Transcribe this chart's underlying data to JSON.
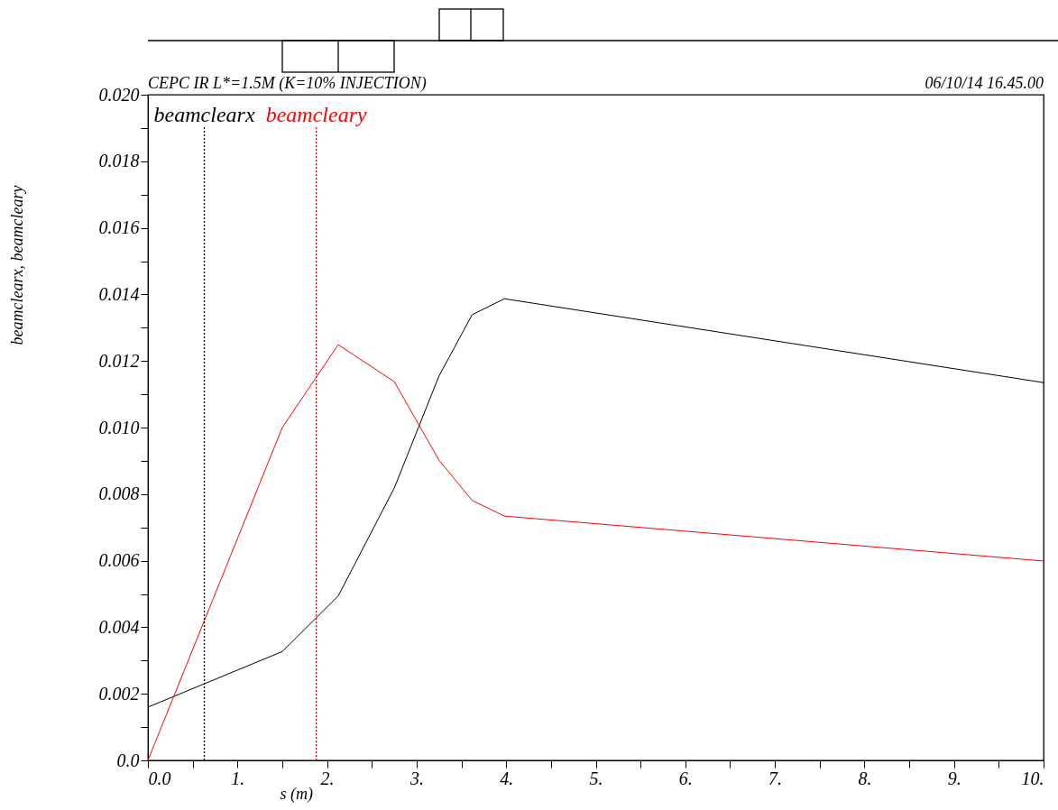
{
  "chart_data": {
    "type": "line",
    "title": "CEPC IR L*=1.5M (K=10% INJECTION)",
    "subtitle": "06/10/14 16.45.00",
    "xlabel": "s (m)",
    "ylabel": "beamclearx, beamcleary",
    "x": [
      0,
      1.5,
      2.125,
      2.75,
      3.25,
      3.62,
      3.98,
      10
    ],
    "series": [
      {
        "name": "beamclearx",
        "color": "#000000",
        "values": [
          0.0016,
          0.00327,
          0.00494,
          0.00818,
          0.01155,
          0.01339,
          0.01387,
          0.01135
        ]
      },
      {
        "name": "beamcleary",
        "color": "#ff0000",
        "values": [
          0,
          0.01,
          0.01249,
          0.01138,
          0.00902,
          0.00781,
          0.00734,
          0.00599
        ]
      }
    ],
    "xlim": [
      0,
      10
    ],
    "ylim": [
      0,
      0.02
    ],
    "xticks": [
      {
        "value": 0,
        "label": "0.0"
      },
      {
        "value": 0.5,
        "label": null
      },
      {
        "value": 1,
        "label": "1."
      },
      {
        "value": 1.5,
        "label": null
      },
      {
        "value": 2,
        "label": "2."
      },
      {
        "value": 2.5,
        "label": null
      },
      {
        "value": 3,
        "label": "3."
      },
      {
        "value": 3.5,
        "label": null
      },
      {
        "value": 4,
        "label": "4."
      },
      {
        "value": 4.5,
        "label": null
      },
      {
        "value": 5,
        "label": "5."
      },
      {
        "value": 5.5,
        "label": null
      },
      {
        "value": 6,
        "label": "6."
      },
      {
        "value": 6.5,
        "label": null
      },
      {
        "value": 7,
        "label": "7."
      },
      {
        "value": 7.5,
        "label": null
      },
      {
        "value": 8,
        "label": "8."
      },
      {
        "value": 8.5,
        "label": null
      },
      {
        "value": 9,
        "label": "9."
      },
      {
        "value": 9.5,
        "label": null
      },
      {
        "value": 10,
        "label": "10."
      }
    ],
    "yticks": [
      {
        "value": 0,
        "label": "0.0"
      },
      {
        "value": 0.001,
        "label": null
      },
      {
        "value": 0.002,
        "label": "0.002"
      },
      {
        "value": 0.003,
        "label": null
      },
      {
        "value": 0.004,
        "label": "0.004"
      },
      {
        "value": 0.005,
        "label": null
      },
      {
        "value": 0.006,
        "label": "0.006"
      },
      {
        "value": 0.007,
        "label": null
      },
      {
        "value": 0.008,
        "label": "0.008"
      },
      {
        "value": 0.009,
        "label": null
      },
      {
        "value": 0.01,
        "label": "0.010"
      },
      {
        "value": 0.011,
        "label": null
      },
      {
        "value": 0.012,
        "label": "0.012"
      },
      {
        "value": 0.013,
        "label": null
      },
      {
        "value": 0.014,
        "label": "0.014"
      },
      {
        "value": 0.015,
        "label": null
      },
      {
        "value": 0.016,
        "label": "0.016"
      },
      {
        "value": 0.017,
        "label": null
      },
      {
        "value": 0.018,
        "label": "0.018"
      },
      {
        "value": 0.019,
        "label": null
      },
      {
        "value": 0.02,
        "label": "0.020"
      }
    ],
    "ref_lines": [
      {
        "axis": "x",
        "value": 0.63,
        "color": "#000000",
        "line_style": "dotted"
      },
      {
        "axis": "x",
        "value": 1.88,
        "color": "#ff0000",
        "line_style": "dotted"
      }
    ],
    "grid": false,
    "line_style": "solid",
    "marker": "none"
  }
}
